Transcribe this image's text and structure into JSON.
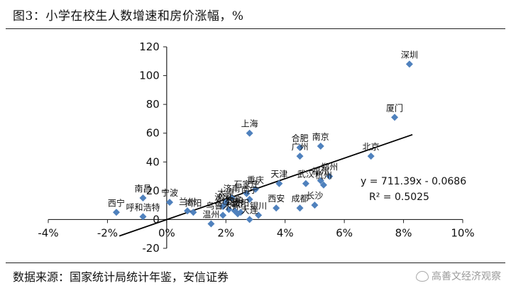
{
  "header": {
    "title": "图3：小学在校生人数增速和房价涨幅，%"
  },
  "footer": {
    "source": "数据来源：国家统计局统计年鉴，安信证券",
    "watermark": "高善文经济观察"
  },
  "chart_data": {
    "type": "scatter",
    "xlim": [
      -0.04,
      0.1
    ],
    "ylim": [
      -20,
      120
    ],
    "x_ticks": [
      -0.04,
      -0.02,
      0,
      0.02,
      0.04,
      0.06,
      0.08,
      0.1
    ],
    "x_tick_labels": [
      "-4%",
      "-2%",
      "0%",
      "2%",
      "4%",
      "6%",
      "8%",
      "10%"
    ],
    "y_ticks": [
      -20,
      0,
      20,
      40,
      60,
      80,
      100,
      120
    ],
    "y_tick_labels": [
      "-20",
      "0",
      "20",
      "40",
      "60",
      "80",
      "100",
      "120"
    ],
    "marker_color": "#4f81bd",
    "trendline": {
      "slope": 711.39,
      "intercept": -0.0686,
      "equation": "y = 711.39x - 0.0686",
      "r2_label": "R² = 0.5025",
      "color": "#000000"
    },
    "points": [
      {
        "label": "深圳",
        "x": 0.082,
        "y": 108
      },
      {
        "label": "厦门",
        "x": 0.077,
        "y": 71
      },
      {
        "label": "北京",
        "x": 0.069,
        "y": 44
      },
      {
        "label": "上海",
        "x": 0.028,
        "y": 60
      },
      {
        "label": "南京",
        "x": 0.052,
        "y": 51
      },
      {
        "label": "合肥",
        "x": 0.045,
        "y": 50
      },
      {
        "label": "广州",
        "x": 0.045,
        "y": 44
      },
      {
        "label": "郑州",
        "x": 0.055,
        "y": 30
      },
      {
        "label": "福州",
        "x": 0.052,
        "y": 27
      },
      {
        "label": "武汉",
        "x": 0.047,
        "y": 25
      },
      {
        "label": "杭州",
        "x": 0.053,
        "y": 24
      },
      {
        "label": "天津",
        "x": 0.038,
        "y": 25
      },
      {
        "label": "长沙",
        "x": 0.05,
        "y": 10
      },
      {
        "label": "成都",
        "x": 0.045,
        "y": 8
      },
      {
        "label": "西安",
        "x": 0.037,
        "y": 8
      },
      {
        "label": "重庆",
        "x": 0.03,
        "y": 21
      },
      {
        "label": "石家庄",
        "x": 0.027,
        "y": 18
      },
      {
        "label": "南宁",
        "x": 0.028,
        "y": 14
      },
      {
        "label": "济南",
        "x": 0.022,
        "y": 15
      },
      {
        "label": "太原",
        "x": 0.02,
        "y": 12
      },
      {
        "label": "沈阳",
        "x": 0.019,
        "y": 9
      },
      {
        "label": "哈尔滨",
        "x": 0.021,
        "y": 7
      },
      {
        "label": "昆明",
        "x": 0.023,
        "y": 6
      },
      {
        "label": "贵阳",
        "x": 0.025,
        "y": 5
      },
      {
        "label": "海口",
        "x": 0.024,
        "y": 4
      },
      {
        "label": "银川",
        "x": 0.031,
        "y": 3
      },
      {
        "label": "乌鲁木齐",
        "x": 0.019,
        "y": 3
      },
      {
        "label": "温州",
        "x": 0.015,
        "y": -3
      },
      {
        "label": "大连",
        "x": 0.028,
        "y": 0
      },
      {
        "label": "宁波",
        "x": 0.001,
        "y": 12
      },
      {
        "label": "兰州",
        "x": 0.007,
        "y": 6
      },
      {
        "label": "揭阳",
        "x": 0.009,
        "y": 5
      },
      {
        "label": "南昌",
        "x": -0.008,
        "y": 15
      },
      {
        "label": "呼和浩特",
        "x": -0.008,
        "y": 2
      },
      {
        "label": "西宁",
        "x": -0.017,
        "y": 5
      }
    ]
  }
}
